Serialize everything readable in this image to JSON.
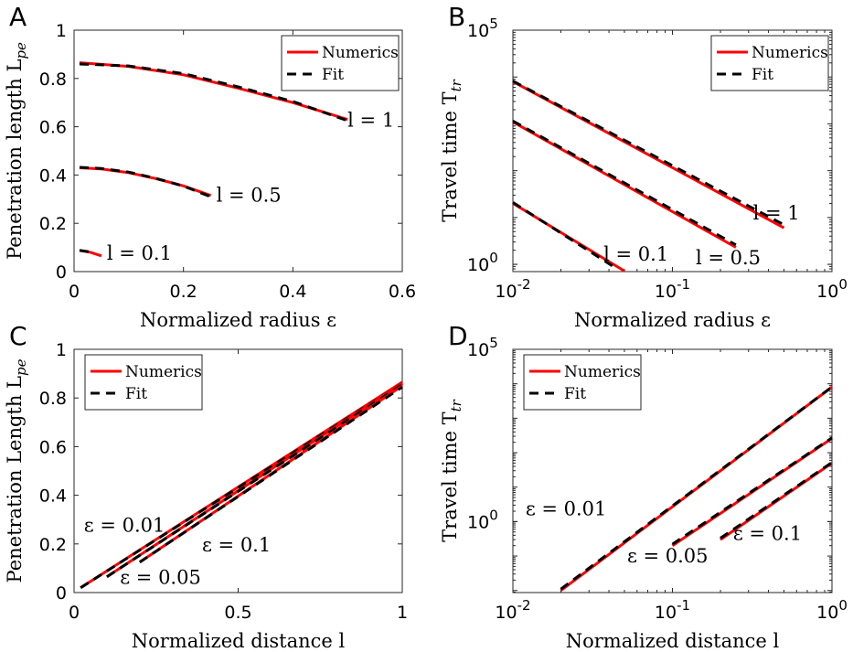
{
  "chart_data": [
    {
      "panel": "A",
      "type": "line",
      "xlabel": "Normalized radius ε",
      "ylabel": "Penetration length L",
      "ylabel_sub": "pe",
      "xlim": [
        0,
        0.6
      ],
      "ylim": [
        0,
        1
      ],
      "xscale": "linear",
      "yscale": "linear",
      "xticks": [
        {
          "v": 0,
          "label": "0"
        },
        {
          "v": 0.2,
          "label": "0.2"
        },
        {
          "v": 0.4,
          "label": "0.4"
        },
        {
          "v": 0.6,
          "label": "0.6"
        }
      ],
      "yticks": [
        {
          "v": 0,
          "label": "0"
        },
        {
          "v": 0.2,
          "label": "0.2"
        },
        {
          "v": 0.4,
          "label": "0.4"
        },
        {
          "v": 0.6,
          "label": "0.6"
        },
        {
          "v": 0.8,
          "label": "0.8"
        },
        {
          "v": 1,
          "label": "1"
        }
      ],
      "legend": {
        "position": "top-right",
        "entries": [
          "Numerics",
          "Fit"
        ]
      },
      "series": [
        {
          "curve": "l = 1",
          "kind": "numerics",
          "x": [
            0.01,
            0.1,
            0.2,
            0.3,
            0.4,
            0.5
          ],
          "y": [
            0.865,
            0.85,
            0.815,
            0.76,
            0.7,
            0.63
          ]
        },
        {
          "curve": "l = 1",
          "kind": "fit",
          "x": [
            0.01,
            0.1,
            0.2,
            0.3,
            0.4,
            0.5
          ],
          "y": [
            0.86,
            0.852,
            0.82,
            0.765,
            0.705,
            0.625
          ]
        },
        {
          "curve": "l = 0.5",
          "kind": "numerics",
          "x": [
            0.01,
            0.05,
            0.1,
            0.15,
            0.2,
            0.25
          ],
          "y": [
            0.43,
            0.425,
            0.41,
            0.385,
            0.355,
            0.315
          ]
        },
        {
          "curve": "l = 0.5",
          "kind": "fit",
          "x": [
            0.01,
            0.05,
            0.1,
            0.15,
            0.2,
            0.25
          ],
          "y": [
            0.432,
            0.427,
            0.412,
            0.386,
            0.354,
            0.31
          ]
        },
        {
          "curve": "l = 0.1",
          "kind": "numerics",
          "x": [
            0.01,
            0.03,
            0.05
          ],
          "y": [
            0.088,
            0.08,
            0.065
          ]
        },
        {
          "curve": "l = 0.1",
          "kind": "fit",
          "x": [
            0.01,
            0.03
          ],
          "y": [
            0.088,
            0.081
          ]
        }
      ],
      "annotations": [
        {
          "text": "l = 1",
          "x": 0.5,
          "y": 0.6
        },
        {
          "text": "l = 0.5",
          "x": 0.26,
          "y": 0.29
        },
        {
          "text": "l = 0.1",
          "x": 0.06,
          "y": 0.05
        }
      ]
    },
    {
      "panel": "B",
      "type": "line",
      "xlabel": "Normalized radius ε",
      "ylabel": "Travel time T",
      "ylabel_sub": "tr",
      "xlim": [
        0.01,
        1
      ],
      "ylim": [
        0.7,
        100000
      ],
      "xscale": "log",
      "yscale": "log",
      "xticks": [
        {
          "v": 0.01,
          "label": "10",
          "exp": "-2"
        },
        {
          "v": 0.1,
          "label": "10",
          "exp": "-1"
        },
        {
          "v": 1,
          "label": "10",
          "exp": "0"
        }
      ],
      "yticks": [
        {
          "v": 1,
          "label": "10",
          "exp": "0"
        },
        {
          "v": 100000,
          "label": "10",
          "exp": "5"
        }
      ],
      "legend": {
        "position": "top-right",
        "entries": [
          "Numerics",
          "Fit"
        ]
      },
      "series": [
        {
          "curve": "l = 1",
          "kind": "numerics",
          "x": [
            0.01,
            0.5
          ],
          "y": [
            8000,
            6
          ]
        },
        {
          "curve": "l = 1",
          "kind": "fit",
          "x": [
            0.01,
            0.5
          ],
          "y": [
            8200,
            7
          ]
        },
        {
          "curve": "l = 0.5",
          "kind": "numerics",
          "x": [
            0.01,
            0.25
          ],
          "y": [
            1100,
            2.3
          ]
        },
        {
          "curve": "l = 0.5",
          "kind": "fit",
          "x": [
            0.01,
            0.25
          ],
          "y": [
            1150,
            2.6
          ]
        },
        {
          "curve": "l = 0.1",
          "kind": "numerics",
          "x": [
            0.01,
            0.05
          ],
          "y": [
            20,
            0.72
          ]
        },
        {
          "curve": "l = 0.1",
          "kind": "fit",
          "x": [
            0.01,
            0.045
          ],
          "y": [
            21,
            0.8
          ]
        }
      ],
      "annotations": [
        {
          "text": "l = 1",
          "x": 0.32,
          "y": 9
        },
        {
          "text": "l = 0.5",
          "x": 0.14,
          "y": 1.0
        },
        {
          "text": "l = 0.1",
          "x": 0.037,
          "y": 1.2
        }
      ]
    },
    {
      "panel": "C",
      "type": "line",
      "xlabel": "Normalized distance l",
      "ylabel": "Penetration Length L",
      "ylabel_sub": "pe",
      "xlim": [
        0,
        1
      ],
      "ylim": [
        0,
        1
      ],
      "xscale": "linear",
      "yscale": "linear",
      "xticks": [
        {
          "v": 0,
          "label": "0"
        },
        {
          "v": 0.5,
          "label": "0.5"
        },
        {
          "v": 1,
          "label": "1"
        }
      ],
      "yticks": [
        {
          "v": 0,
          "label": "0"
        },
        {
          "v": 0.2,
          "label": "0.2"
        },
        {
          "v": 0.4,
          "label": "0.4"
        },
        {
          "v": 0.6,
          "label": "0.6"
        },
        {
          "v": 0.8,
          "label": "0.8"
        },
        {
          "v": 1,
          "label": "1"
        }
      ],
      "legend": {
        "position": "top-left",
        "entries": [
          "Numerics",
          "Fit"
        ]
      },
      "series": [
        {
          "curve": "ε = 0.01",
          "kind": "numerics",
          "x": [
            0.02,
            1
          ],
          "y": [
            0.02,
            0.865
          ]
        },
        {
          "curve": "ε = 0.01",
          "kind": "fit",
          "x": [
            0.02,
            1
          ],
          "y": [
            0.02,
            0.86
          ]
        },
        {
          "curve": "ε = 0.05",
          "kind": "numerics",
          "x": [
            0.1,
            1
          ],
          "y": [
            0.065,
            0.86
          ]
        },
        {
          "curve": "ε = 0.05",
          "kind": "fit",
          "x": [
            0.1,
            1
          ],
          "y": [
            0.065,
            0.855
          ]
        },
        {
          "curve": "ε = 0.1",
          "kind": "numerics",
          "x": [
            0.2,
            1
          ],
          "y": [
            0.125,
            0.85
          ]
        },
        {
          "curve": "ε = 0.1",
          "kind": "fit",
          "x": [
            0.2,
            1
          ],
          "y": [
            0.125,
            0.845
          ]
        }
      ],
      "annotations": [
        {
          "text": "ε = 0.01",
          "x": 0.03,
          "y": 0.25
        },
        {
          "text": "ε = 0.05",
          "x": 0.14,
          "y": 0.035
        },
        {
          "text": "ε = 0.1",
          "x": 0.39,
          "y": 0.17
        }
      ]
    },
    {
      "panel": "D",
      "type": "line",
      "xlabel": "Normalized distance l",
      "ylabel": "Travel time T",
      "ylabel_sub": "tr",
      "xlim": [
        0.01,
        1
      ],
      "ylim": [
        0.0087,
        100000
      ],
      "xscale": "log",
      "yscale": "log",
      "xticks": [
        {
          "v": 0.01,
          "label": "10",
          "exp": "-2"
        },
        {
          "v": 0.1,
          "label": "10",
          "exp": "-1"
        },
        {
          "v": 1,
          "label": "10",
          "exp": "0"
        }
      ],
      "yticks": [
        {
          "v": 1,
          "label": "10",
          "exp": "0"
        },
        {
          "v": 100000,
          "label": "10",
          "exp": "5"
        }
      ],
      "legend": {
        "position": "top-left",
        "entries": [
          "Numerics",
          "Fit"
        ]
      },
      "series": [
        {
          "curve": "ε = 0.01",
          "kind": "numerics",
          "x": [
            0.02,
            1
          ],
          "y": [
            0.01,
            8000
          ]
        },
        {
          "curve": "ε = 0.01",
          "kind": "fit",
          "x": [
            0.02,
            1
          ],
          "y": [
            0.011,
            8100
          ]
        },
        {
          "curve": "ε = 0.05",
          "kind": "numerics",
          "x": [
            0.1,
            1
          ],
          "y": [
            0.2,
            260
          ]
        },
        {
          "curve": "ε = 0.05",
          "kind": "fit",
          "x": [
            0.1,
            1
          ],
          "y": [
            0.22,
            270
          ]
        },
        {
          "curve": "ε = 0.1",
          "kind": "numerics",
          "x": [
            0.2,
            1
          ],
          "y": [
            0.3,
            50
          ]
        },
        {
          "curve": "ε = 0.1",
          "kind": "fit",
          "x": [
            0.2,
            1
          ],
          "y": [
            0.33,
            52
          ]
        }
      ],
      "annotations": [
        {
          "text": "ε = 0.01",
          "x": 0.012,
          "y": 1.5
        },
        {
          "text": "ε = 0.05",
          "x": 0.052,
          "y": 0.065
        },
        {
          "text": "ε = 0.1",
          "x": 0.24,
          "y": 0.29
        }
      ]
    }
  ]
}
